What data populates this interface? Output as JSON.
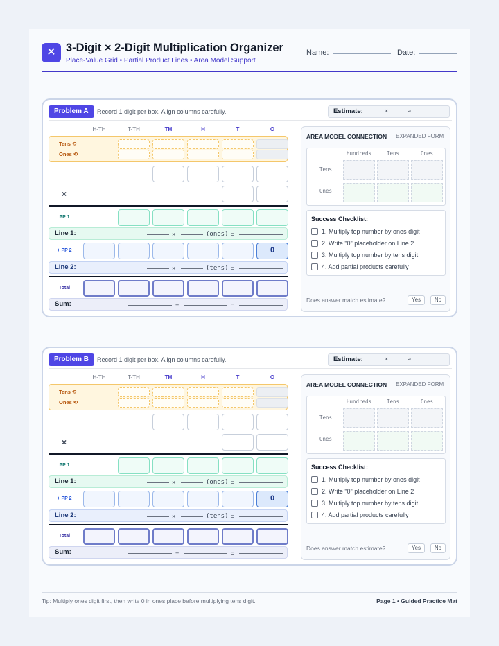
{
  "header": {
    "icon": "close-icon",
    "icon_glyph": "✕",
    "title": "3-Digit × 2-Digit Multiplication Organizer",
    "subtitle": "Place-Value Grid • Partial Product Lines • Area Model Support",
    "name_label": "Name:",
    "date_label": "Date:"
  },
  "problems": [
    {
      "label": "Problem A",
      "instruction": "Record 1 digit per box. Align columns carefully.",
      "estimate_label": "Estimate:",
      "estimate_times": "×",
      "estimate_approx": "≈",
      "columns": [
        "H-TH",
        "T-TH",
        "TH",
        "H",
        "T",
        "O"
      ],
      "regroup_tens": "Tens ⟲",
      "regroup_ones": "Ones ⟲",
      "times_sign": "×",
      "pp1_label": "PP 1",
      "line1_label": "Line 1:",
      "line1_times": "×",
      "line1_tag": "(ones)",
      "line1_eq": "=",
      "pp2_label": "+ PP 2",
      "pp2_placeholder": "0",
      "line2_label": "Line 2:",
      "line2_times": "×",
      "line2_tag": "(tens)",
      "line2_eq": "=",
      "total_label": "Total",
      "sum_label": "Sum:",
      "sum_plus": "+",
      "sum_eq": "=",
      "area": {
        "title": "AREA MODEL CONNECTION",
        "subtitle": "EXPANDED FORM",
        "col_headers": [
          "Hundreds",
          "Tens",
          "Ones"
        ],
        "row_headers": [
          "Tens",
          "Ones"
        ],
        "checklist_title": "Success Checklist:",
        "checklist": [
          "1. Multiply top number by ones digit",
          "2. Write \"0\" placeholder on Line 2",
          "3. Multiply top number by tens digit",
          "4. Add partial products carefully"
        ],
        "question": "Does answer match estimate?",
        "yes": "Yes",
        "no": "No"
      }
    },
    {
      "label": "Problem B",
      "instruction": "Record 1 digit per box. Align columns carefully.",
      "estimate_label": "Estimate:",
      "estimate_times": "×",
      "estimate_approx": "≈",
      "columns": [
        "H-TH",
        "T-TH",
        "TH",
        "H",
        "T",
        "O"
      ],
      "regroup_tens": "Tens ⟲",
      "regroup_ones": "Ones ⟲",
      "times_sign": "×",
      "pp1_label": "PP 1",
      "line1_label": "Line 1:",
      "line1_times": "×",
      "line1_tag": "(ones)",
      "line1_eq": "=",
      "pp2_label": "+ PP 2",
      "pp2_placeholder": "0",
      "line2_label": "Line 2:",
      "line2_times": "×",
      "line2_tag": "(tens)",
      "line2_eq": "=",
      "total_label": "Total",
      "sum_label": "Sum:",
      "sum_plus": "+",
      "sum_eq": "=",
      "area": {
        "title": "AREA MODEL CONNECTION",
        "subtitle": "EXPANDED FORM",
        "col_headers": [
          "Hundreds",
          "Tens",
          "Ones"
        ],
        "row_headers": [
          "Tens",
          "Ones"
        ],
        "checklist_title": "Success Checklist:",
        "checklist": [
          "1. Multiply top number by ones digit",
          "2. Write \"0\" placeholder on Line 2",
          "3. Multiply top number by tens digit",
          "4. Add partial products carefully"
        ],
        "question": "Does answer match estimate?",
        "yes": "Yes",
        "no": "No"
      }
    }
  ],
  "footer": {
    "tip": "Tip: Multiply ones digit first, then write 0 in ones place before multiplying tens digit.",
    "page": "Page 1 • Guided Practice Mat"
  },
  "colors": {
    "accent": "#4f46e5",
    "regroup": "#f4c76b",
    "partial_green": "#86e0c3",
    "partial_blue": "#9cb9ea"
  }
}
